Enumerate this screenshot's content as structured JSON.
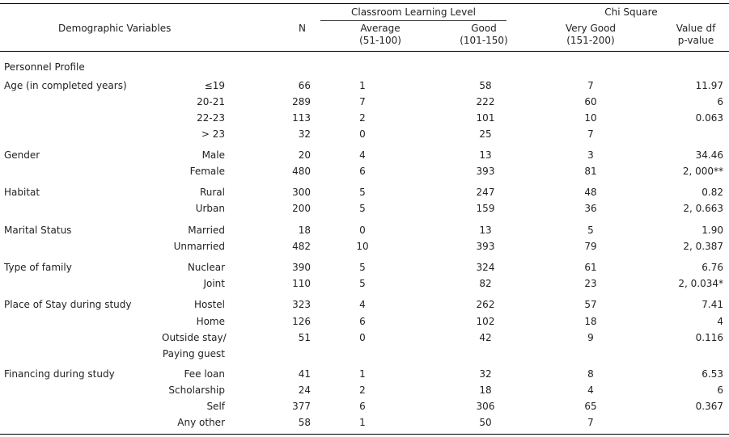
{
  "header": {
    "demographic": "Demographic Variables",
    "n": "N",
    "group_title": "Classroom Learning Level",
    "chi_title": "Chi Square",
    "average": "Average",
    "average_range": "(51-100)",
    "good": "Good",
    "good_range": "(101-150)",
    "very_good": "Very Good",
    "very_good_range": "(151-200)",
    "value_df": "Value df",
    "p_value": "p-value"
  },
  "section_label": "Personnel Profile",
  "rows": [
    {
      "variable": "Age (in completed years)",
      "category": "≤19",
      "n": "66",
      "average": "1",
      "good": "58",
      "very_good": "7",
      "chi": "11.97"
    },
    {
      "variable": "",
      "category": "20-21",
      "n": "289",
      "average": "7",
      "good": "222",
      "very_good": "60",
      "chi": "6"
    },
    {
      "variable": "",
      "category": "22-23",
      "n": "113",
      "average": "2",
      "good": "101",
      "very_good": "10",
      "chi": "0.063"
    },
    {
      "variable": "",
      "category": "> 23",
      "n": "32",
      "average": "0",
      "good": "25",
      "very_good": "7",
      "chi": ""
    },
    {
      "variable": "Gender",
      "category": "Male",
      "n": "20",
      "average": "4",
      "good": "13",
      "very_good": "3",
      "chi": "34.46"
    },
    {
      "variable": "",
      "category": "Female",
      "n": "480",
      "average": "6",
      "good": "393",
      "very_good": "81",
      "chi": "2,    000**"
    },
    {
      "variable": "Habitat",
      "category": "Rural",
      "n": "300",
      "average": "5",
      "good": "247",
      "very_good": "48",
      "chi": "0.82"
    },
    {
      "variable": "",
      "category": "Urban",
      "n": "200",
      "average": "5",
      "good": "159",
      "very_good": "36",
      "chi": "2,    0.663"
    },
    {
      "variable": "Marital Status",
      "category": "Married",
      "n": "18",
      "average": "0",
      "good": "13",
      "very_good": "5",
      "chi": "1.90"
    },
    {
      "variable": "",
      "category": "Unmarried",
      "n": "482",
      "average": "10",
      "good": "393",
      "very_good": "79",
      "chi": "2,    0.387"
    },
    {
      "variable": "Type of family",
      "category": "Nuclear",
      "n": "390",
      "average": "5",
      "good": "324",
      "very_good": "61",
      "chi": "6.76"
    },
    {
      "variable": "",
      "category": "Joint",
      "n": "110",
      "average": "5",
      "good": "82",
      "very_good": "23",
      "chi": "2,   0.034*"
    },
    {
      "variable": "Place of Stay during study",
      "category": "Hostel",
      "n": "323",
      "average": "4",
      "good": "262",
      "very_good": "57",
      "chi": "7.41"
    },
    {
      "variable": "",
      "category": "Home",
      "n": "126",
      "average": "6",
      "good": "102",
      "very_good": "18",
      "chi": "4"
    },
    {
      "variable": "",
      "category": "Outside stay/",
      "n": "51",
      "average": "0",
      "good": "42",
      "very_good": "9",
      "chi": "0.116"
    },
    {
      "variable": "",
      "category": "Paying guest",
      "n": "",
      "average": "",
      "good": "",
      "very_good": "",
      "chi": ""
    },
    {
      "variable": "Financing during study",
      "category": "Fee loan",
      "n": "41",
      "average": "1",
      "good": "32",
      "very_good": "8",
      "chi": "6.53"
    },
    {
      "variable": "",
      "category": "Scholarship",
      "n": "24",
      "average": "2",
      "good": "18",
      "very_good": "4",
      "chi": "6"
    },
    {
      "variable": "",
      "category": "Self",
      "n": "377",
      "average": "6",
      "good": "306",
      "very_good": "65",
      "chi": "0.367"
    },
    {
      "variable": "",
      "category": "Any other",
      "n": "58",
      "average": "1",
      "good": "50",
      "very_good": "7",
      "chi": ""
    }
  ]
}
